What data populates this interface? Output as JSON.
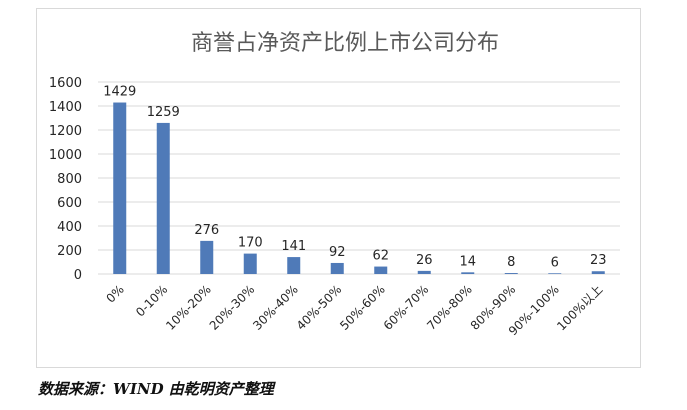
{
  "chart_data": {
    "type": "bar",
    "title": "商誉占净资产比例上市公司分布",
    "categories": [
      "0%",
      "0-10%",
      "10%-20%",
      "20%-30%",
      "30%-40%",
      "40%-50%",
      "50%-60%",
      "60%-70%",
      "70%-80%",
      "80%-90%",
      "90%-100%",
      "100%以上"
    ],
    "values": [
      1429,
      1259,
      276,
      170,
      141,
      92,
      62,
      26,
      14,
      8,
      6,
      23
    ],
    "ylim": [
      0,
      1600
    ],
    "yticks": [
      0,
      200,
      400,
      600,
      800,
      1000,
      1200,
      1400,
      1600
    ],
    "grid": true,
    "bar_color": "#4f7ab8",
    "gridline_color": "#d9d9d9"
  },
  "source_note": "数据来源：WIND 由乾明资产整理"
}
